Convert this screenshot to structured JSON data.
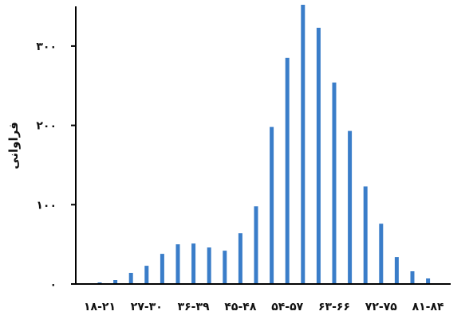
{
  "chart_data": {
    "type": "bar",
    "ylabel": "فراوانی",
    "xlabel": "",
    "title": "",
    "ylim": [
      0,
      350
    ],
    "yticks": [
      0,
      100,
      200,
      300
    ],
    "ytick_labels": [
      "۰",
      "۱۰۰",
      "۲۰۰",
      "۳۰۰"
    ],
    "xtick_labels": [
      "۱۸-۲۱",
      "۲۷-۳۰",
      "۳۶-۳۹",
      "۴۵-۴۸",
      "۵۴-۵۷",
      "۶۳-۶۶",
      "۷۲-۷۵",
      "۸۱-۸۴"
    ],
    "categories": [
      "۱۸-۲۱",
      "۲۱-۲۴",
      "۲۴-۲۷",
      "۲۷-۳۰",
      "۳۰-۳۳",
      "۳۳-۳۶",
      "۳۶-۳۹",
      "۳۹-۴۲",
      "۴۲-۴۵",
      "۴۵-۴۸",
      "۴۸-۵۱",
      "۵۱-۵۴",
      "۵۴-۵۷",
      "۵۷-۶۰",
      "۶۰-۶۳",
      "۶۳-۶۶",
      "۶۶-۶۹",
      "۶۹-۷۲",
      "۷۲-۷۵",
      "۷۵-۷۸",
      "۷۸-۸۱",
      "۸۱-۸۴"
    ],
    "values": [
      2,
      5,
      14,
      23,
      38,
      50,
      51,
      46,
      42,
      64,
      98,
      198,
      285,
      352,
      323,
      254,
      193,
      123,
      76,
      34,
      16,
      7
    ],
    "bar_color": "#3a7dc9",
    "axis_color": "#000000",
    "grid": false,
    "legend": "none"
  }
}
